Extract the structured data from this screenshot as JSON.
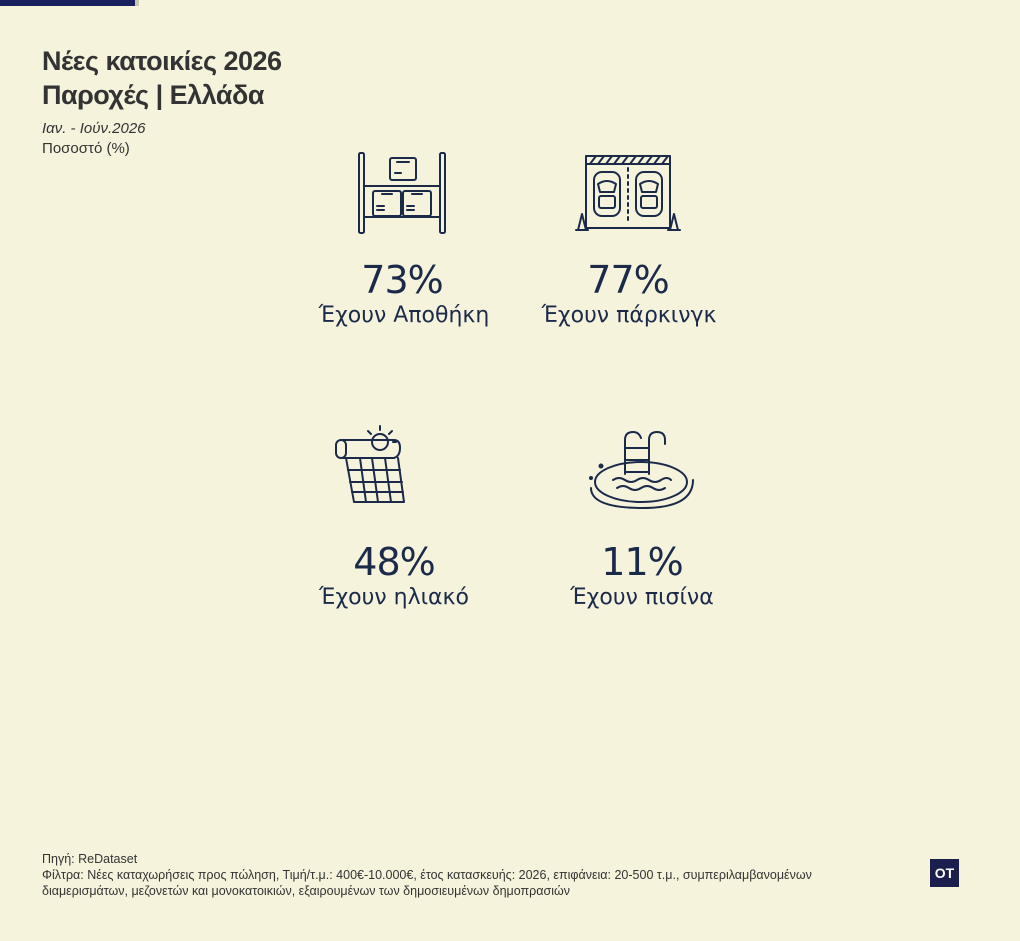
{
  "header": {
    "title_line1": "Νέες κατοικίες 2026",
    "title_line2": "Παροχές | Ελλάδα",
    "period": "Ιαν. - Ιούν.2026",
    "unit": "Ποσοστό (%)"
  },
  "chart_data": {
    "type": "table",
    "title": "Νέες κατοικίες 2026 Παροχές | Ελλάδα",
    "categories": [
      "Έχουν Αποθήκη",
      "Έχουν πάρκινγκ",
      "Έχουν ηλιακό",
      "Έχουν πισίνα"
    ],
    "values": [
      73,
      77,
      48,
      11
    ],
    "value_labels": [
      "73%",
      "77%",
      "48%",
      "11%"
    ],
    "icons": [
      "storage-shelf-icon",
      "parking-icon",
      "solar-panel-icon",
      "pool-icon"
    ]
  },
  "footer": {
    "source": "Πηγή: ReDataset",
    "filters": "Φίλτρα: Νέες καταχωρήσεις προς πώληση, Τιμή/τ.μ.: 400€-10.000€, έτος κατασκευής: 2026, επιφάνεια: 20-500 τ.μ., συμπεριλαμβανομένων διαμερισμάτων, μεζονετών και μονοκατοικιών, εξαιρουμένων των δημοσιευμένων δημοπρασιών"
  },
  "logo": {
    "text": "OT"
  },
  "colors": {
    "background": "#f5f3dc",
    "accent": "#1a1f5e",
    "text": "#1c2a4a"
  }
}
